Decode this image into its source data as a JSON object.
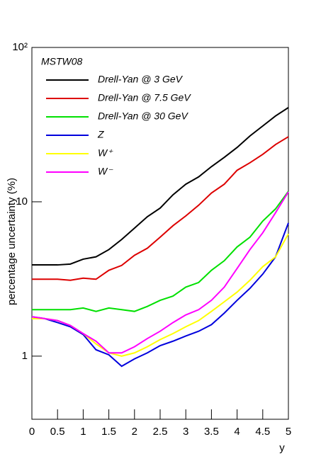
{
  "chart_data": {
    "type": "line",
    "legend_title": "MSTW08",
    "x_label": "y",
    "y_label": "percentage uncertainty (%)",
    "log_y": true,
    "legend": "top-left",
    "x": [
      0,
      0.25,
      0.5,
      0.75,
      1,
      1.25,
      1.5,
      1.75,
      2,
      2.25,
      2.5,
      2.75,
      3,
      3.25,
      3.5,
      3.75,
      4,
      4.25,
      4.5,
      4.75,
      5
    ],
    "xlim": [
      0,
      5
    ],
    "xticks": [
      0,
      0.5,
      1,
      1.5,
      2,
      2.5,
      3,
      3.5,
      4,
      4.5,
      5
    ],
    "ylim": [
      0.39,
      100
    ],
    "yticks": [
      1,
      10,
      {
        "value": 100,
        "label": "10²"
      }
    ],
    "series": [
      {
        "name": "Drell-Yan @ 3 GeV",
        "color": "#000000",
        "values": [
          3.9,
          3.9,
          3.9,
          3.95,
          4.25,
          4.4,
          4.9,
          5.7,
          6.75,
          8.0,
          9.1,
          11.1,
          13.0,
          14.5,
          16.9,
          19.4,
          22.5,
          26.7,
          31,
          36,
          40.8
        ]
      },
      {
        "name": "Drell-Yan @ 7.5 GeV",
        "color": "#dd0000",
        "values": [
          3.15,
          3.15,
          3.15,
          3.1,
          3.2,
          3.15,
          3.6,
          3.87,
          4.5,
          5.0,
          5.9,
          7.0,
          8.1,
          9.5,
          11.4,
          13.0,
          16.0,
          17.9,
          20.3,
          23.5,
          26.4
        ]
      },
      {
        "name": "Drell-Yan @ 30 GeV",
        "color": "#00e000",
        "values": [
          2.0,
          2.0,
          2.0,
          2.0,
          2.05,
          1.95,
          2.05,
          2.0,
          1.95,
          2.1,
          2.3,
          2.45,
          2.8,
          3.0,
          3.6,
          4.15,
          5.1,
          5.9,
          7.5,
          9.0,
          11.7
        ]
      },
      {
        "name": "Z",
        "color": "#0000dd",
        "values": [
          1.8,
          1.75,
          1.65,
          1.55,
          1.38,
          1.1,
          1.02,
          0.86,
          0.96,
          1.05,
          1.17,
          1.25,
          1.35,
          1.45,
          1.6,
          1.9,
          2.3,
          2.75,
          3.4,
          4.4,
          7.3
        ]
      },
      {
        "name": "W⁺",
        "color": "#ffff00",
        "values": [
          1.75,
          1.75,
          1.7,
          1.58,
          1.4,
          1.2,
          1.05,
          1.0,
          1.05,
          1.15,
          1.28,
          1.4,
          1.55,
          1.7,
          1.95,
          2.25,
          2.6,
          3.1,
          3.8,
          4.4,
          6.2
        ]
      },
      {
        "name": "W⁻",
        "color": "#ff00ff",
        "values": [
          1.8,
          1.75,
          1.7,
          1.58,
          1.4,
          1.25,
          1.05,
          1.05,
          1.15,
          1.3,
          1.45,
          1.65,
          1.85,
          2.0,
          2.3,
          2.8,
          3.7,
          4.9,
          6.3,
          8.5,
          11.6
        ]
      }
    ]
  }
}
